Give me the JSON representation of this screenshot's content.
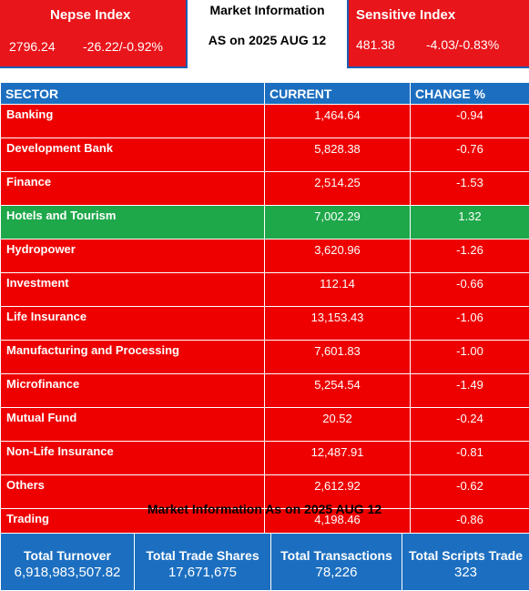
{
  "nepse": {
    "title": "Nepse Index",
    "value": "2796.24",
    "change": "-26.22/-0.92%"
  },
  "market_info": {
    "line1": "Market Information",
    "line2": "AS on 2025 AUG 12"
  },
  "sensitive": {
    "title": "Sensitive Index",
    "value": "481.38",
    "change": "-4.03/-0.83%"
  },
  "table": {
    "headers": [
      "SECTOR",
      "CURRENT",
      "CHANGE %"
    ],
    "rows": [
      {
        "sector": "Banking",
        "current": "1,464.64",
        "change": "-0.94",
        "status": "down"
      },
      {
        "sector": "Development Bank",
        "current": "5,828.38",
        "change": "-0.76",
        "status": "down"
      },
      {
        "sector": "Finance",
        "current": "2,514.25",
        "change": "-1.53",
        "status": "down"
      },
      {
        "sector": "Hotels and Tourism",
        "current": "7,002.29",
        "change": "1.32",
        "status": "up"
      },
      {
        "sector": "Hydropower",
        "current": "3,620.96",
        "change": "-1.26",
        "status": "down"
      },
      {
        "sector": "Investment",
        "current": "112.14",
        "change": "-0.66",
        "status": "down"
      },
      {
        "sector": "Life Insurance",
        "current": "13,153.43",
        "change": "-1.06",
        "status": "down"
      },
      {
        "sector": "Manufacturing and Processing",
        "current": "7,601.83",
        "change": "-1.00",
        "status": "down"
      },
      {
        "sector": "Microfinance",
        "current": "5,254.54",
        "change": "-1.49",
        "status": "down"
      },
      {
        "sector": "Mutual Fund",
        "current": "20.52",
        "change": "-0.24",
        "status": "down"
      },
      {
        "sector": "Non-Life Insurance",
        "current": "12,487.91",
        "change": "-0.81",
        "status": "down"
      },
      {
        "sector": "Others",
        "current": "2,612.92",
        "change": "-0.62",
        "status": "down"
      },
      {
        "sector": "Trading",
        "current": "4,198.46",
        "change": "-0.86",
        "status": "down"
      }
    ]
  },
  "subtitle": "Market Information As on 2025 AUG 12",
  "totals": [
    {
      "label": "Total Turnover",
      "value": "6,918,983,507.82"
    },
    {
      "label": "Total Trade Shares",
      "value": "17,671,675"
    },
    {
      "label": "Total Transactions",
      "value": "78,226"
    },
    {
      "label": "Total Scripts Trade",
      "value": "323"
    }
  ],
  "colors": {
    "down": "#ee0000",
    "up": "#1ea84a",
    "header": "#1c6fc0",
    "index_box": "#e8151b"
  }
}
